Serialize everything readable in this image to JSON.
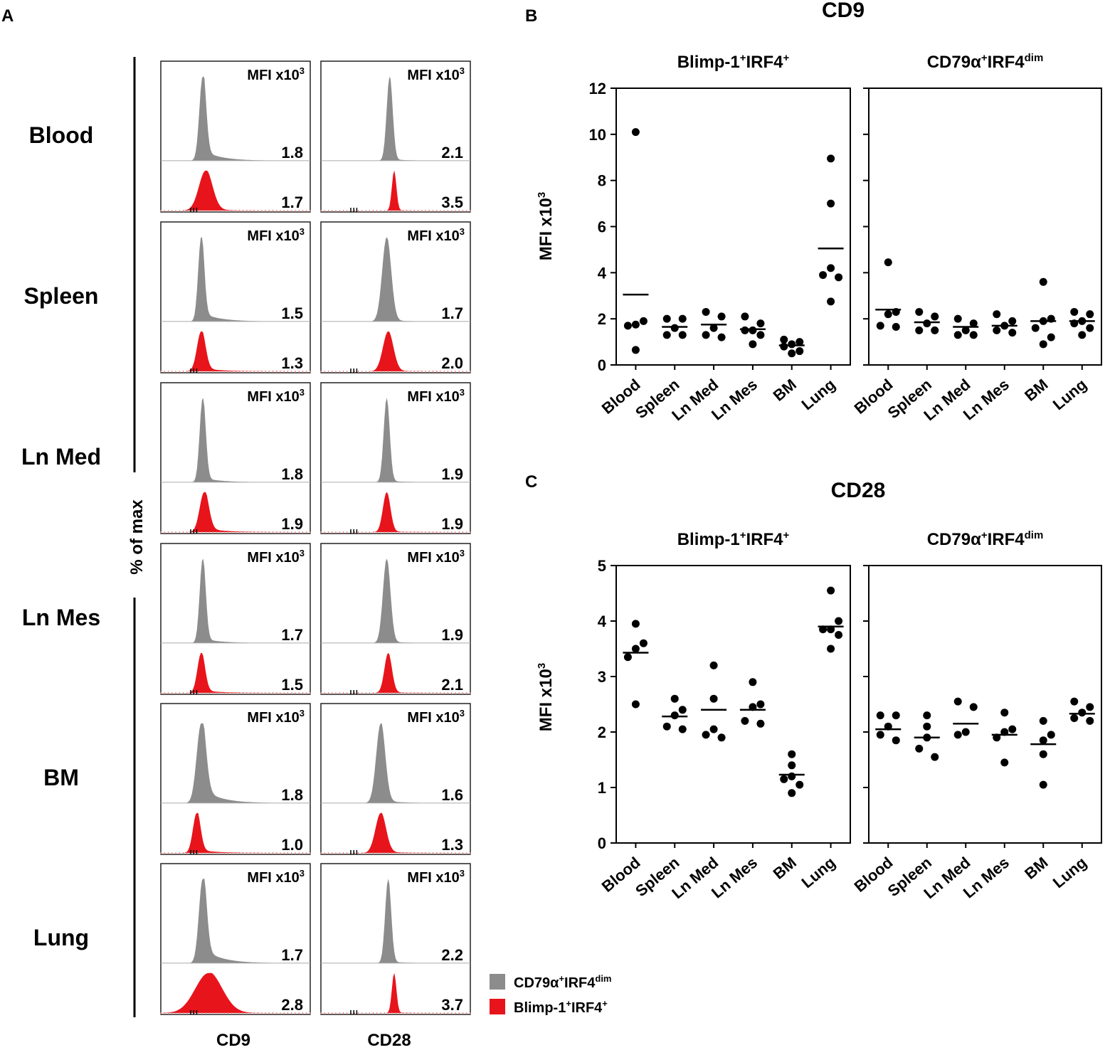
{
  "panel_labels": {
    "a": "A",
    "b": "B",
    "c": "C"
  },
  "colors": {
    "gray": "#8c8c8c",
    "red": "#e8141b",
    "axis": "#000000"
  },
  "panel_a": {
    "ylabel": "% of max",
    "mfi_label": "MFI x10",
    "mfi_sup": "3",
    "col_labels": [
      "CD9",
      "CD28"
    ],
    "rows": [
      {
        "tissue": "Blood",
        "cd9": [
          "1.8",
          "1.7"
        ],
        "cd28": [
          "2.1",
          "3.5"
        ]
      },
      {
        "tissue": "Spleen",
        "cd9": [
          "1.5",
          "1.3"
        ],
        "cd28": [
          "1.7",
          "2.0"
        ]
      },
      {
        "tissue": "Ln Med",
        "cd9": [
          "1.8",
          "1.9"
        ],
        "cd28": [
          "1.9",
          "1.9"
        ]
      },
      {
        "tissue": "Ln Mes",
        "cd9": [
          "1.7",
          "1.5"
        ],
        "cd28": [
          "1.9",
          "2.1"
        ]
      },
      {
        "tissue": "BM",
        "cd9": [
          "1.8",
          "1.0"
        ],
        "cd28": [
          "1.6",
          "1.3"
        ]
      },
      {
        "tissue": "Lung",
        "cd9": [
          "1.7",
          "2.8"
        ],
        "cd28": [
          "2.2",
          "3.7"
        ]
      }
    ],
    "legend": [
      {
        "main": "CD79α",
        "sup1": "+",
        "mid": "IRF4",
        "sup2": "dim",
        "color": "#8c8c8c"
      },
      {
        "main": "Blimp-1",
        "sup1": "+",
        "mid": "IRF4",
        "sup2": "+",
        "color": "#e8141b"
      }
    ]
  },
  "chart_data": [
    {
      "type": "scatter",
      "title": "CD9",
      "ylabel": "MFI x10",
      "ylabel_sup": "3",
      "ylim": [
        0,
        12
      ],
      "yticks": [
        0,
        2,
        4,
        6,
        8,
        10,
        12
      ],
      "categories": [
        "Blood",
        "Spleen",
        "Ln Med",
        "Ln Mes",
        "BM",
        "Lung"
      ],
      "subpanels": [
        {
          "title_main": "Blimp-1",
          "title_sup1": "+",
          "title_mid": "IRF4",
          "title_sup2": "+",
          "series": [
            {
              "category": "Blood",
              "mean": 3.05,
              "points": [
                10.1,
                1.9,
                1.75,
                1.7,
                0.65
              ]
            },
            {
              "category": "Spleen",
              "mean": 1.65,
              "points": [
                2.0,
                2.0,
                1.6,
                1.3,
                1.3
              ]
            },
            {
              "category": "Ln Med",
              "mean": 1.75,
              "points": [
                2.3,
                2.1,
                1.6,
                1.3,
                1.2
              ]
            },
            {
              "category": "Ln Mes",
              "mean": 1.55,
              "points": [
                2.1,
                1.8,
                1.5,
                1.5,
                1.3,
                0.9
              ]
            },
            {
              "category": "BM",
              "mean": 0.85,
              "points": [
                1.1,
                1.0,
                0.9,
                0.8,
                0.6,
                0.5
              ]
            },
            {
              "category": "Lung",
              "mean": 5.05,
              "points": [
                8.95,
                7.0,
                4.2,
                3.9,
                3.8,
                2.75
              ]
            }
          ]
        },
        {
          "title_main": "CD79α",
          "title_sup1": "+",
          "title_mid": "IRF4",
          "title_sup2": "dim",
          "series": [
            {
              "category": "Blood",
              "mean": 2.4,
              "points": [
                4.45,
                2.3,
                2.2,
                1.7,
                1.65
              ]
            },
            {
              "category": "Spleen",
              "mean": 1.85,
              "points": [
                2.3,
                2.1,
                1.8,
                1.5,
                1.5
              ]
            },
            {
              "category": "Ln Med",
              "mean": 1.65,
              "points": [
                2.0,
                1.8,
                1.5,
                1.3,
                1.3
              ]
            },
            {
              "category": "Ln Mes",
              "mean": 1.7,
              "points": [
                2.2,
                1.9,
                1.7,
                1.5,
                1.4
              ]
            },
            {
              "category": "BM",
              "mean": 1.9,
              "points": [
                3.6,
                2.0,
                1.9,
                1.6,
                1.2,
                0.9
              ]
            },
            {
              "category": "Lung",
              "mean": 1.9,
              "points": [
                2.3,
                2.2,
                1.9,
                1.8,
                1.6,
                1.3
              ]
            }
          ]
        }
      ]
    },
    {
      "type": "scatter",
      "title": "CD28",
      "ylabel": "MFI x10",
      "ylabel_sup": "3",
      "ylim": [
        0,
        5
      ],
      "yticks": [
        0,
        1,
        2,
        3,
        4,
        5
      ],
      "categories": [
        "Blood",
        "Spleen",
        "Ln Med",
        "Ln Mes",
        "BM",
        "Lung"
      ],
      "subpanels": [
        {
          "title_main": "Blimp-1",
          "title_sup1": "+",
          "title_mid": "IRF4",
          "title_sup2": "+",
          "series": [
            {
              "category": "Blood",
              "mean": 3.43,
              "points": [
                3.95,
                3.6,
                3.5,
                3.35,
                2.5
              ]
            },
            {
              "category": "Spleen",
              "mean": 2.28,
              "points": [
                2.6,
                2.4,
                2.3,
                2.1,
                2.05
              ]
            },
            {
              "category": "Ln Med",
              "mean": 2.4,
              "points": [
                3.2,
                2.6,
                2.05,
                1.95,
                1.9
              ]
            },
            {
              "category": "Ln Mes",
              "mean": 2.4,
              "points": [
                2.9,
                2.5,
                2.45,
                2.2,
                2.15
              ]
            },
            {
              "category": "BM",
              "mean": 1.23,
              "points": [
                1.6,
                1.4,
                1.2,
                1.15,
                1.05,
                0.9
              ]
            },
            {
              "category": "Lung",
              "mean": 3.9,
              "points": [
                4.55,
                4.0,
                3.85,
                3.85,
                3.75,
                3.5
              ]
            }
          ]
        },
        {
          "title_main": "CD79α",
          "title_sup1": "+",
          "title_mid": "IRF4",
          "title_sup2": "dim",
          "series": [
            {
              "category": "Blood",
              "mean": 2.05,
              "points": [
                2.3,
                2.3,
                2.1,
                1.95,
                1.85
              ]
            },
            {
              "category": "Spleen",
              "mean": 1.9,
              "points": [
                2.3,
                2.1,
                1.9,
                1.7,
                1.55
              ]
            },
            {
              "category": "Ln Med",
              "mean": 2.15,
              "points": [
                2.55,
                2.45,
                2.0,
                1.95
              ]
            },
            {
              "category": "Ln Mes",
              "mean": 1.95,
              "points": [
                2.35,
                2.05,
                2.0,
                1.9,
                1.45
              ]
            },
            {
              "category": "BM",
              "mean": 1.78,
              "points": [
                2.2,
                1.95,
                1.85,
                1.6,
                1.05
              ]
            },
            {
              "category": "Lung",
              "mean": 2.33,
              "points": [
                2.55,
                2.45,
                2.35,
                2.25,
                2.2
              ]
            }
          ]
        }
      ]
    }
  ]
}
